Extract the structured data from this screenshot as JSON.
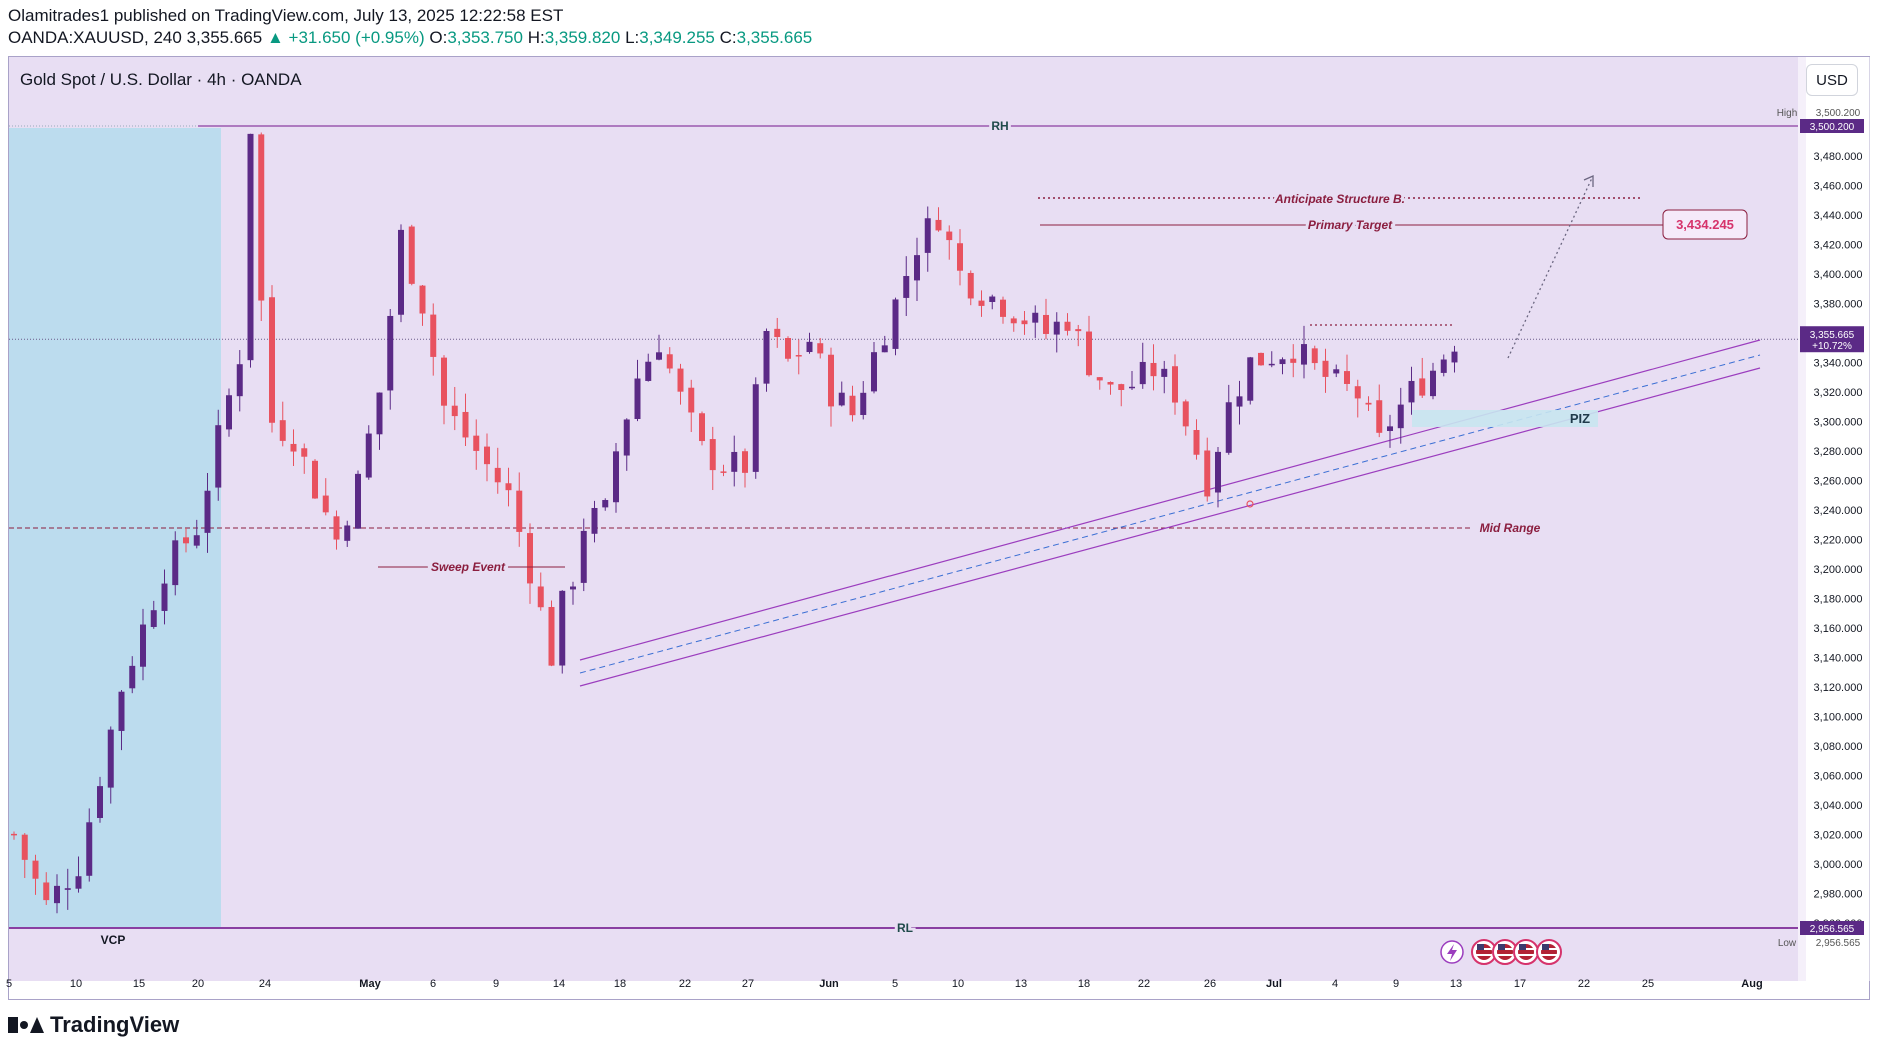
{
  "header": {
    "publisher": "Olamitrades1 published on TradingView.com, July 13, 2025 12:22:58 EST",
    "symbol": "OANDA:XAUUSD, 240",
    "last": "3,355.665",
    "change": "+31.650 (+0.95%)",
    "o_label": "O:",
    "o_val": "3,353.750",
    "h_label": "H:",
    "h_val": "3,359.820",
    "l_label": "L:",
    "l_val": "3,349.255",
    "c_label": "C:",
    "c_val": "3,355.665"
  },
  "chart_title": "Gold Spot / U.S. Dollar · 4h · OANDA",
  "currency_button": "USD",
  "brand": "TradingView",
  "colors": {
    "bg_pane": "#e8def3",
    "range_shade": "#bcdcee",
    "up": "#5b2a86",
    "down": "#e8525f",
    "level_line": "#8a3fa2",
    "annotation": "#8b1e3f",
    "channel": "#9b3dbe",
    "midline": "#3b6fd4",
    "target_box": "#d6336c",
    "current_price_tag": "#5b2a86"
  },
  "chart_data": {
    "type": "candlestick",
    "symbol": "XAUUSD",
    "timeframe": "4h",
    "ylim": [
      2940,
      3510
    ],
    "y_ticks": [
      2960,
      2980,
      3000,
      3020,
      3040,
      3060,
      3080,
      3100,
      3120,
      3140,
      3160,
      3180,
      3200,
      3220,
      3240,
      3260,
      3280,
      3300,
      3320,
      3340,
      3360,
      3380,
      3400,
      3420,
      3440,
      3460,
      3480
    ],
    "x_tick_labels": [
      "5",
      "10",
      "15",
      "20",
      "24",
      "May",
      "6",
      "9",
      "14",
      "18",
      "22",
      "27",
      "Jun",
      "5",
      "10",
      "13",
      "18",
      "22",
      "26",
      "Jul",
      "4",
      "9",
      "13",
      "17",
      "22",
      "25",
      "Aug"
    ],
    "bold_tick_labels": [
      "May",
      "Jun",
      "Jul",
      "Aug"
    ],
    "price_path": [
      [
        0,
        3020
      ],
      [
        3,
        2972
      ],
      [
        6,
        3000
      ],
      [
        10,
        3120
      ],
      [
        14,
        3200
      ],
      [
        17,
        3228
      ],
      [
        19,
        3288
      ],
      [
        21,
        3345
      ],
      [
        22,
        3500
      ],
      [
        23,
        3380
      ],
      [
        24,
        3300
      ],
      [
        26,
        3290
      ],
      [
        28,
        3255
      ],
      [
        30,
        3220
      ],
      [
        32,
        3258
      ],
      [
        34,
        3320
      ],
      [
        36,
        3425
      ],
      [
        38,
        3380
      ],
      [
        40,
        3310
      ],
      [
        42,
        3290
      ],
      [
        44,
        3270
      ],
      [
        46,
        3250
      ],
      [
        48,
        3200
      ],
      [
        50,
        3141
      ],
      [
        51,
        3175
      ],
      [
        52,
        3195
      ],
      [
        53,
        3230
      ],
      [
        55,
        3238
      ],
      [
        56,
        3280
      ],
      [
        58,
        3330
      ],
      [
        60,
        3355
      ],
      [
        62,
        3315
      ],
      [
        64,
        3280
      ],
      [
        66,
        3270
      ],
      [
        68,
        3270
      ],
      [
        70,
        3360
      ],
      [
        72,
        3340
      ],
      [
        74,
        3355
      ],
      [
        76,
        3320
      ],
      [
        78,
        3305
      ],
      [
        80,
        3345
      ],
      [
        82,
        3380
      ],
      [
        84,
        3420
      ],
      [
        86,
        3440
      ],
      [
        88,
        3400
      ],
      [
        90,
        3388
      ],
      [
        92,
        3380
      ],
      [
        94,
        3370
      ],
      [
        96,
        3360
      ],
      [
        98,
        3370
      ],
      [
        100,
        3340
      ],
      [
        102,
        3320
      ],
      [
        104,
        3325
      ],
      [
        106,
        3335
      ],
      [
        108,
        3320
      ],
      [
        110,
        3280
      ],
      [
        111,
        3260
      ],
      [
        113,
        3310
      ],
      [
        115,
        3340
      ],
      [
        117,
        3345
      ],
      [
        119,
        3350
      ],
      [
        121,
        3335
      ],
      [
        123,
        3325
      ],
      [
        125,
        3318
      ],
      [
        127,
        3285
      ],
      [
        128,
        3300
      ],
      [
        130,
        3320
      ],
      [
        132,
        3335
      ],
      [
        134,
        3355
      ]
    ],
    "current_price": 3355.665,
    "current_change_pct": "+10.72%",
    "high": 3500.2,
    "low": 2956.565,
    "levels": [
      {
        "name": "RH",
        "price": 3500.2
      },
      {
        "name": "RL",
        "price": 2956.565
      },
      {
        "name": "Mid Range",
        "price": 3228
      },
      {
        "name": "Primary Target",
        "price": 3434.245
      },
      {
        "name": "Anticipate Structure B.",
        "price": 3450
      }
    ],
    "annotations": {
      "sweep_event": "Sweep Event",
      "piz": "PIZ",
      "vcp": "VCP",
      "target_value": "3,434.245"
    },
    "axis_tags": {
      "high_label": "High",
      "high_value": "3,500.200",
      "rh_value": "3,500.200",
      "current_value": "3,355.665",
      "current_pct": "+10.72%",
      "rl_value": "2,956.565",
      "low_label": "Low",
      "low_value": "2,956.565"
    }
  }
}
